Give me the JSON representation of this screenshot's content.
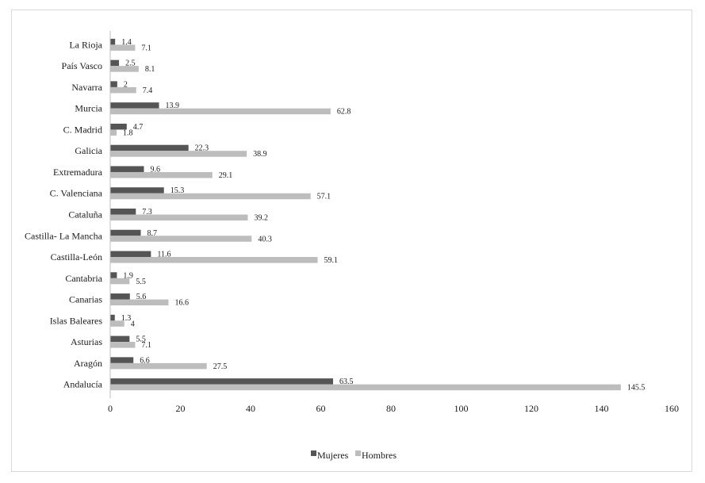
{
  "chart_data": {
    "type": "bar",
    "orientation": "horizontal",
    "categories": [
      "La Rioja",
      "País Vasco",
      "Navarra",
      "Murcia",
      "C. Madrid",
      "Galicia",
      "Extremadura",
      "C. Valenciana",
      "Cataluña",
      "Castilla- La Mancha",
      "Castilla-León",
      "Cantabria",
      "Canarias",
      "Islas Baleares",
      "Asturias",
      "Aragón",
      "Andalucía"
    ],
    "series": [
      {
        "name": "Mujeres",
        "color": "#555555",
        "values": [
          1.4,
          2.5,
          2,
          13.9,
          4.7,
          22.3,
          9.6,
          15.3,
          7.3,
          8.7,
          11.6,
          1.9,
          5.6,
          1.3,
          5.5,
          6.6,
          63.5
        ]
      },
      {
        "name": "Hombres",
        "color": "#bdbdbd",
        "values": [
          7.1,
          8.1,
          7.4,
          62.8,
          1.8,
          38.9,
          29.1,
          57.1,
          39.2,
          40.3,
          59.1,
          5.5,
          16.6,
          4,
          7.1,
          27.5,
          145.5
        ]
      }
    ],
    "xlim": [
      0,
      160
    ],
    "xticks": [
      "0",
      "20",
      "40",
      "60",
      "80",
      "100",
      "120",
      "140",
      "160"
    ],
    "title": "",
    "xlabel": "",
    "ylabel": "",
    "grid": false,
    "legend": "bottom-center"
  }
}
